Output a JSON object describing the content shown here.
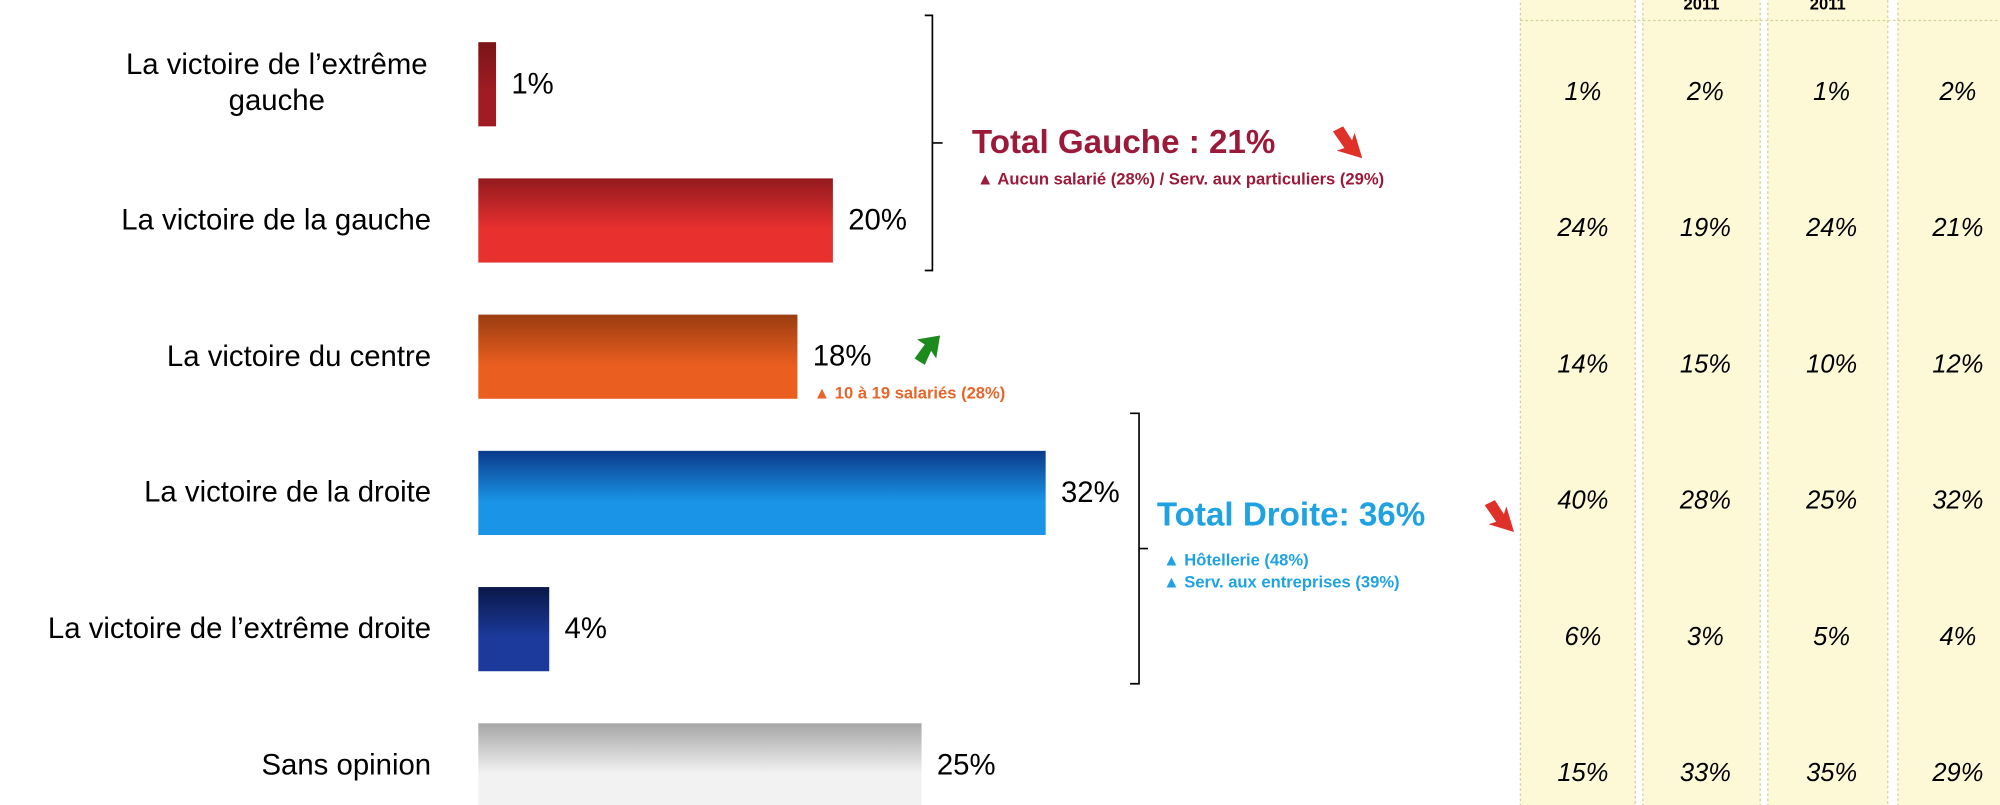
{
  "chart_data": {
    "type": "hbar",
    "categories": [
      "La victoire de l’extrême gauche",
      "La victoire de la gauche",
      "La victoire du centre",
      "La victoire de la droite",
      "La victoire de l’extrême droite",
      "Sans opinion"
    ],
    "values": [
      1,
      20,
      18,
      32,
      4,
      25
    ],
    "value_labels": [
      "1%",
      "20%",
      "18%",
      "32%",
      "4%",
      "25%"
    ],
    "colors": [
      [
        "#7a1418",
        "#a01c22"
      ],
      [
        "#931a1f",
        "#e8302f"
      ],
      [
        "#9a3c10",
        "#ea5e1f"
      ],
      [
        "#0b3a8a",
        "#1994e6"
      ],
      [
        "#0a1748",
        "#1b3a9c"
      ],
      [
        "#a6a6a6",
        "#f2f2f2"
      ]
    ],
    "annotations": [
      {
        "text": "Total Gauche : 21%",
        "color": "#9b1a3a"
      },
      {
        "text": "▲ Aucun salarié (28%) / Serv. aux particuliers (29%)",
        "color": "#9b1a3a"
      },
      {
        "text": "▲ 10 à 19 salariés (28%)",
        "color": "#e8652a"
      },
      {
        "text": "Total Droite: 36%",
        "color": "#1ea2e2"
      },
      {
        "text": "▲ Hôtellerie (48%)",
        "color": "#1ea2e2"
      },
      {
        "text": "▲ Serv. aux entreprises (39%)",
        "color": "#1ea2e2"
      }
    ]
  },
  "table": {
    "headers": [
      null,
      "2011",
      "2011",
      null
    ],
    "rows": [
      [
        "1%",
        "2%",
        "1%",
        "2%"
      ],
      [
        "24%",
        "19%",
        "24%",
        "21%"
      ],
      [
        "14%",
        "15%",
        "10%",
        "12%"
      ],
      [
        "40%",
        "28%",
        "25%",
        "32%"
      ],
      [
        "6%",
        "3%",
        "5%",
        "4%"
      ],
      [
        "15%",
        "33%",
        "35%",
        "29%"
      ]
    ]
  }
}
